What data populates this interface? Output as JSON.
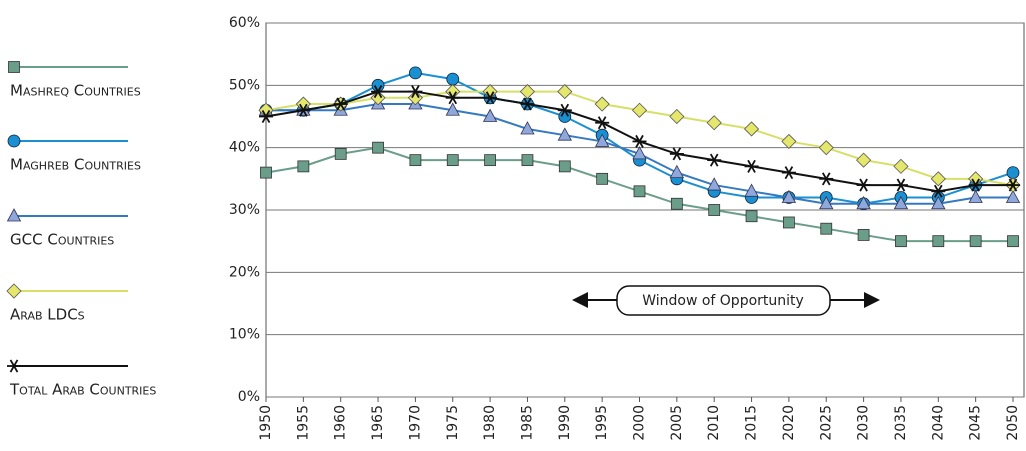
{
  "chart_data": {
    "type": "line",
    "annotation": "Window of Opportunity",
    "categories": [
      "1950",
      "1955",
      "1960",
      "1965",
      "1970",
      "1975",
      "1980",
      "1985",
      "1990",
      "1995",
      "2000",
      "2005",
      "2010",
      "2015",
      "2020",
      "2025",
      "2030",
      "2035",
      "2040",
      "2045",
      "2050"
    ],
    "ylim": [
      0,
      60
    ],
    "yticks": [
      {
        "value": 0,
        "label": "0%"
      },
      {
        "value": 10,
        "label": "10%"
      },
      {
        "value": 20,
        "label": "20%"
      },
      {
        "value": 30,
        "label": "30%"
      },
      {
        "value": 40,
        "label": "40%"
      },
      {
        "value": 50,
        "label": "50%"
      },
      {
        "value": 60,
        "label": "60%"
      }
    ],
    "grid": true,
    "legend": "left",
    "series": [
      {
        "name": "Mashreq Countries",
        "color": "#6a9e8a",
        "marker": "square",
        "values": [
          36,
          37,
          39,
          40,
          38,
          38,
          38,
          38,
          37,
          35,
          33,
          31,
          30,
          29,
          28,
          27,
          26,
          25,
          25,
          25,
          25
        ]
      },
      {
        "name": "Maghreb Countries",
        "color": "#1a8fd2",
        "marker": "circle",
        "values": [
          46,
          46,
          47,
          50,
          52,
          51,
          48,
          47,
          45,
          42,
          38,
          35,
          33,
          32,
          32,
          32,
          31,
          32,
          32,
          34,
          36
        ]
      },
      {
        "name": "GCC Countries",
        "color": "#3579c0",
        "marker": "triangle",
        "values": [
          46,
          46,
          46,
          47,
          47,
          46,
          45,
          43,
          42,
          41,
          39,
          36,
          34,
          33,
          32,
          31,
          31,
          31,
          31,
          32,
          32
        ]
      },
      {
        "name": "Arab LDCs",
        "color": "#d8df68",
        "marker": "diamond",
        "values": [
          46,
          47,
          47,
          48,
          48,
          49,
          49,
          49,
          49,
          47,
          46,
          45,
          44,
          43,
          41,
          40,
          38,
          37,
          35,
          35,
          34
        ]
      },
      {
        "name": "Total Arab Countries",
        "color": "#111111",
        "marker": "asterisk",
        "values": [
          45,
          46,
          47,
          49,
          49,
          48,
          48,
          47,
          46,
          44,
          41,
          39,
          38,
          37,
          36,
          35,
          34,
          34,
          33,
          34,
          34
        ]
      }
    ]
  }
}
